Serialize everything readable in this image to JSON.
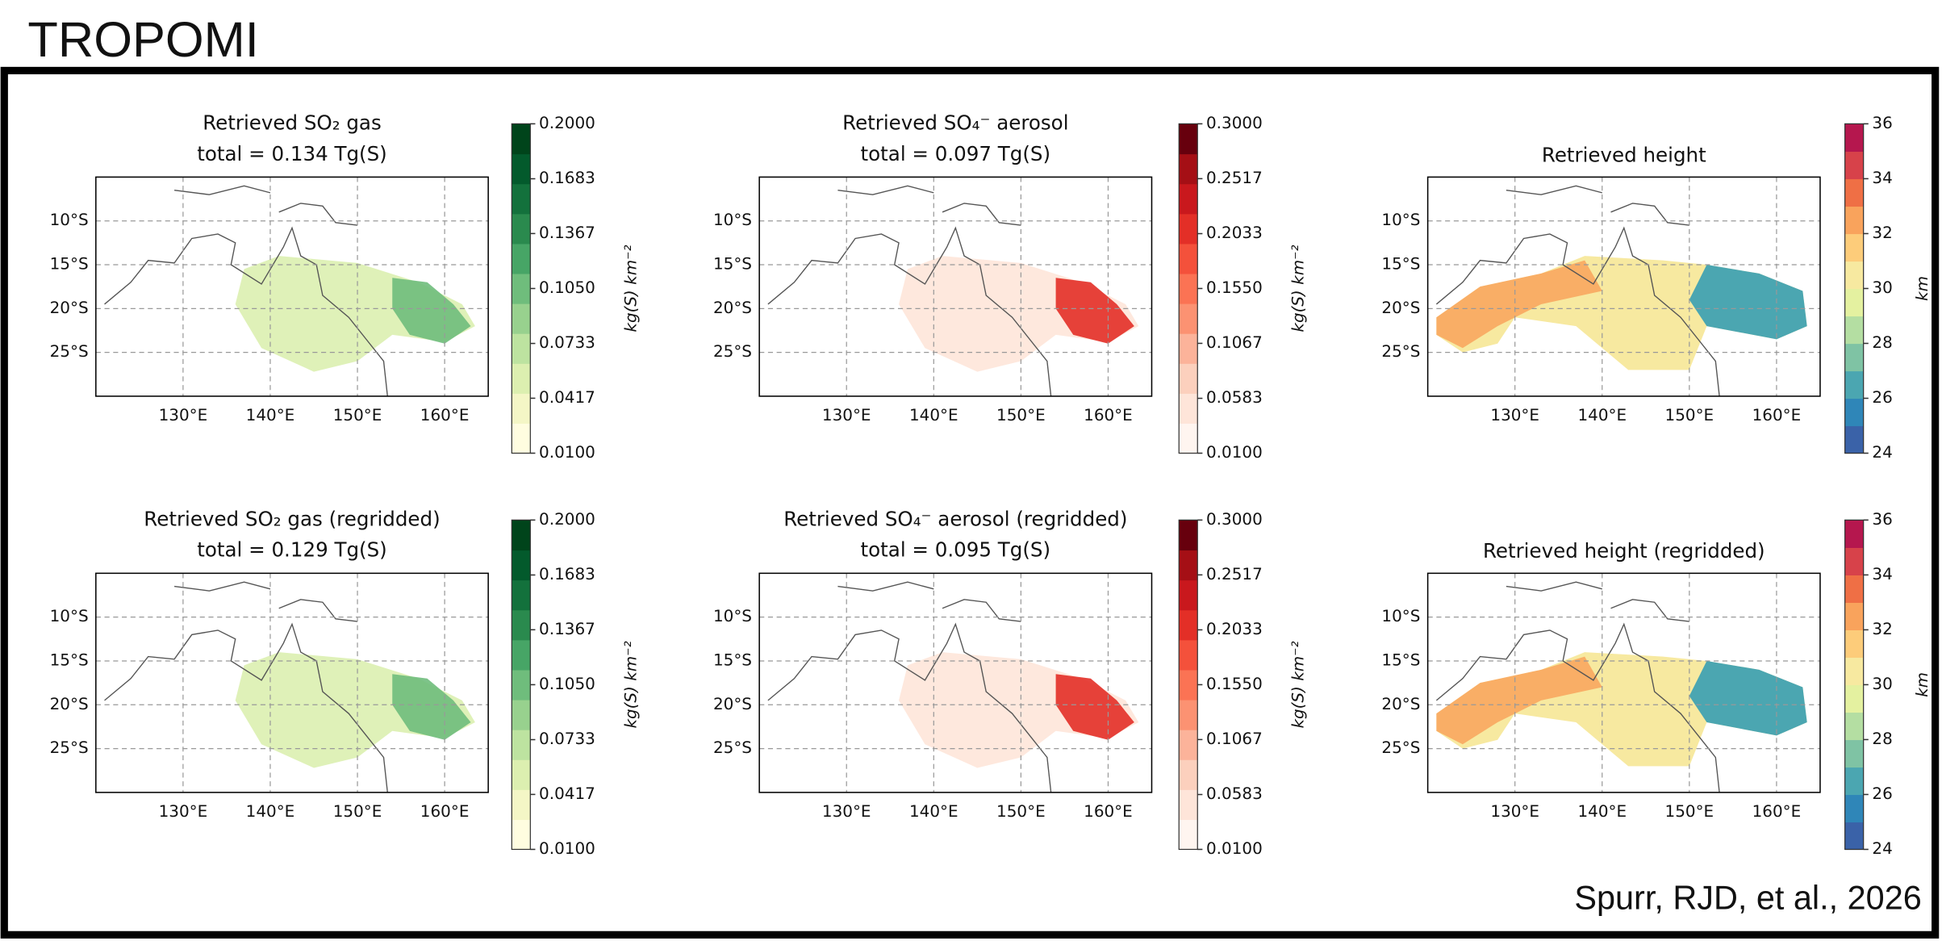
{
  "title": "TROPOMI",
  "citation": "Spurr, RJD, et al., 2026",
  "panels": [
    {
      "title": [
        "Retrieved SO₂ gas",
        "total = 0.134 Tg(S)"
      ],
      "xlim": [
        120,
        165
      ],
      "ylim": [
        -30,
        -5
      ],
      "xticks": [
        {
          "value": 130,
          "label": "130°E"
        },
        {
          "value": 140,
          "label": "140°E"
        },
        {
          "value": 150,
          "label": "150°E"
        },
        {
          "value": 160,
          "label": "160°E"
        }
      ],
      "yticks": [
        {
          "value": -10,
          "label": "10°S"
        },
        {
          "value": -15,
          "label": "15°S"
        },
        {
          "value": -20,
          "label": "20°S"
        },
        {
          "value": -25,
          "label": "25°S"
        }
      ],
      "colorbar": {
        "lim": [
          0.01,
          0.2
        ],
        "label": "kg(S) km⁻²",
        "colors": [
          "#fffde0",
          "#f4f6c6",
          "#dcefb0",
          "#bde3a0",
          "#98d18e",
          "#6fbd7c",
          "#47a566",
          "#2a8a4e",
          "#13713c",
          "#035a2c",
          "#00441b"
        ],
        "ticks": [
          {
            "value": 0.01,
            "label": "0.0100"
          },
          {
            "value": 0.0417,
            "label": "0.0417"
          },
          {
            "value": 0.0733,
            "label": "0.0733"
          },
          {
            "value": 0.105,
            "label": "0.1050"
          },
          {
            "value": 0.1367,
            "label": "0.1367"
          },
          {
            "value": 0.1683,
            "label": "0.1683"
          },
          {
            "value": 0.2,
            "label": "0.2000"
          }
        ]
      }
    },
    {
      "title": [
        "Retrieved SO₄⁻ aerosol",
        "total = 0.097 Tg(S)"
      ],
      "xlim": [
        120,
        165
      ],
      "ylim": [
        -30,
        -5
      ],
      "xticks": [
        {
          "value": 130,
          "label": "130°E"
        },
        {
          "value": 140,
          "label": "140°E"
        },
        {
          "value": 150,
          "label": "150°E"
        },
        {
          "value": 160,
          "label": "160°E"
        }
      ],
      "yticks": [
        {
          "value": -10,
          "label": "10°S"
        },
        {
          "value": -15,
          "label": "15°S"
        },
        {
          "value": -20,
          "label": "20°S"
        },
        {
          "value": -25,
          "label": "25°S"
        }
      ],
      "colorbar": {
        "lim": [
          0.01,
          0.3
        ],
        "label": "kg(S) km⁻²",
        "colors": [
          "#fff5f0",
          "#fee5d9",
          "#fcd0bd",
          "#fcb39a",
          "#fc9272",
          "#fb7354",
          "#f4513b",
          "#e32f27",
          "#c9181d",
          "#a50f15",
          "#67000d"
        ],
        "ticks": [
          {
            "value": 0.01,
            "label": "0.0100"
          },
          {
            "value": 0.0583,
            "label": "0.0583"
          },
          {
            "value": 0.1067,
            "label": "0.1067"
          },
          {
            "value": 0.155,
            "label": "0.1550"
          },
          {
            "value": 0.2033,
            "label": "0.2033"
          },
          {
            "value": 0.2517,
            "label": "0.2517"
          },
          {
            "value": 0.3,
            "label": "0.3000"
          }
        ]
      }
    },
    {
      "title": [
        "Retrieved height"
      ],
      "xlim": [
        120,
        165
      ],
      "ylim": [
        -30,
        -5
      ],
      "xticks": [
        {
          "value": 130,
          "label": "130°E"
        },
        {
          "value": 140,
          "label": "140°E"
        },
        {
          "value": 150,
          "label": "150°E"
        },
        {
          "value": 160,
          "label": "160°E"
        }
      ],
      "yticks": [
        {
          "value": -10,
          "label": "10°S"
        },
        {
          "value": -15,
          "label": "15°S"
        },
        {
          "value": -20,
          "label": "20°S"
        },
        {
          "value": -25,
          "label": "25°S"
        }
      ],
      "colorbar": {
        "lim": [
          24,
          36
        ],
        "label": "km",
        "colors": [
          "#3a62a8",
          "#2f86b8",
          "#4ba6b1",
          "#7fc3a4",
          "#b4dea2",
          "#e4f1a0",
          "#f7e9a0",
          "#fdcc7a",
          "#f9a35c",
          "#ef6f45",
          "#d7424a",
          "#b5174e"
        ],
        "ticks": [
          24,
          26,
          28,
          30,
          32,
          34,
          36
        ]
      }
    },
    {
      "title": [
        "Retrieved SO₂ gas (regridded)",
        "total = 0.129 Tg(S)"
      ],
      "xlim": [
        120,
        165
      ],
      "ylim": [
        -30,
        -5
      ],
      "xticks": [
        {
          "value": 130,
          "label": "130°E"
        },
        {
          "value": 140,
          "label": "140°E"
        },
        {
          "value": 150,
          "label": "150°E"
        },
        {
          "value": 160,
          "label": "160°E"
        }
      ],
      "yticks": [
        {
          "value": -10,
          "label": "10°S"
        },
        {
          "value": -15,
          "label": "15°S"
        },
        {
          "value": -20,
          "label": "20°S"
        },
        {
          "value": -25,
          "label": "25°S"
        }
      ],
      "colorbar": {
        "lim": [
          0.01,
          0.2
        ],
        "label": "kg(S) km⁻²",
        "colors": [
          "#fffde0",
          "#f4f6c6",
          "#dcefb0",
          "#bde3a0",
          "#98d18e",
          "#6fbd7c",
          "#47a566",
          "#2a8a4e",
          "#13713c",
          "#035a2c",
          "#00441b"
        ],
        "ticks": [
          {
            "value": 0.01,
            "label": "0.0100"
          },
          {
            "value": 0.0417,
            "label": "0.0417"
          },
          {
            "value": 0.0733,
            "label": "0.0733"
          },
          {
            "value": 0.105,
            "label": "0.1050"
          },
          {
            "value": 0.1367,
            "label": "0.1367"
          },
          {
            "value": 0.1683,
            "label": "0.1683"
          },
          {
            "value": 0.2,
            "label": "0.2000"
          }
        ]
      }
    },
    {
      "title": [
        "Retrieved SO₄⁻ aerosol (regridded)",
        "total = 0.095 Tg(S)"
      ],
      "xlim": [
        120,
        165
      ],
      "ylim": [
        -30,
        -5
      ],
      "xticks": [
        {
          "value": 130,
          "label": "130°E"
        },
        {
          "value": 140,
          "label": "140°E"
        },
        {
          "value": 150,
          "label": "150°E"
        },
        {
          "value": 160,
          "label": "160°E"
        }
      ],
      "yticks": [
        {
          "value": -10,
          "label": "10°S"
        },
        {
          "value": -15,
          "label": "15°S"
        },
        {
          "value": -20,
          "label": "20°S"
        },
        {
          "value": -25,
          "label": "25°S"
        }
      ],
      "colorbar": {
        "lim": [
          0.01,
          0.3
        ],
        "label": "kg(S) km⁻²",
        "colors": [
          "#fff5f0",
          "#fee5d9",
          "#fcd0bd",
          "#fcb39a",
          "#fc9272",
          "#fb7354",
          "#f4513b",
          "#e32f27",
          "#c9181d",
          "#a50f15",
          "#67000d"
        ],
        "ticks": [
          {
            "value": 0.01,
            "label": "0.0100"
          },
          {
            "value": 0.0583,
            "label": "0.0583"
          },
          {
            "value": 0.1067,
            "label": "0.1067"
          },
          {
            "value": 0.155,
            "label": "0.1550"
          },
          {
            "value": 0.2033,
            "label": "0.2033"
          },
          {
            "value": 0.2517,
            "label": "0.2517"
          },
          {
            "value": 0.3,
            "label": "0.3000"
          }
        ]
      }
    },
    {
      "title": [
        "Retrieved height (regridded)"
      ],
      "xlim": [
        120,
        165
      ],
      "ylim": [
        -30,
        -5
      ],
      "xticks": [
        {
          "value": 130,
          "label": "130°E"
        },
        {
          "value": 140,
          "label": "140°E"
        },
        {
          "value": 150,
          "label": "150°E"
        },
        {
          "value": 160,
          "label": "160°E"
        }
      ],
      "yticks": [
        {
          "value": -10,
          "label": "10°S"
        },
        {
          "value": -15,
          "label": "15°S"
        },
        {
          "value": -20,
          "label": "20°S"
        },
        {
          "value": -25,
          "label": "25°S"
        }
      ],
      "colorbar": {
        "lim": [
          24,
          36
        ],
        "label": "km",
        "colors": [
          "#3a62a8",
          "#2f86b8",
          "#4ba6b1",
          "#7fc3a4",
          "#b4dea2",
          "#e4f1a0",
          "#f7e9a0",
          "#fdcc7a",
          "#f9a35c",
          "#ef6f45",
          "#d7424a",
          "#b5174e"
        ],
        "ticks": [
          24,
          26,
          28,
          30,
          32,
          34,
          36
        ]
      }
    }
  ]
}
